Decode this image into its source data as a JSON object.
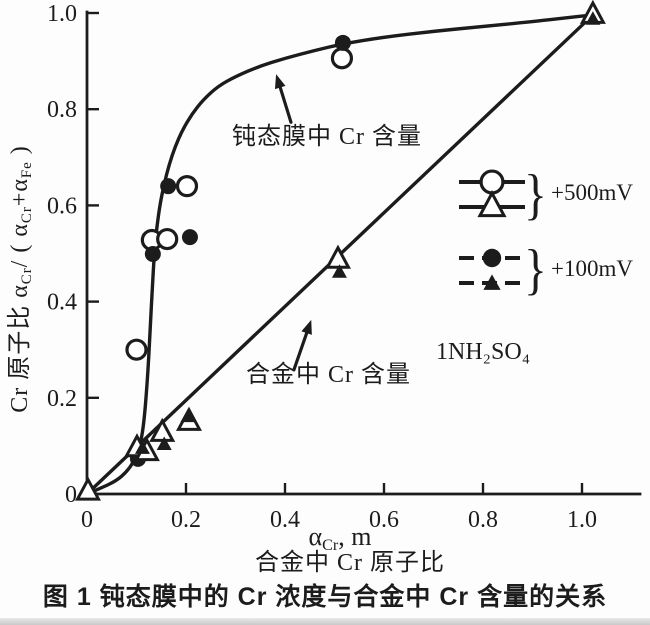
{
  "figure": {
    "caption": "图 1  钝态膜中的 Cr 浓度与合金中 Cr 含量的关系",
    "electrolyte": "1NH₂SO₄",
    "brace": "}"
  },
  "chart_data": {
    "type": "scatter",
    "title": "",
    "ink_color": "#1c1c1c",
    "xlim": [
      0,
      1.12
    ],
    "ylim": [
      0,
      1.0
    ],
    "grid": false,
    "xlabel_rich": [
      {
        "t": "α"
      },
      {
        "t": "Cr",
        "sub": true
      },
      {
        "t": ", m"
      }
    ],
    "xlabel_cjk": "合金中 Cr 原子比",
    "ylabel_rich": [
      {
        "t": "Cr 原子比 α"
      },
      {
        "t": "Cr",
        "sub": true
      },
      {
        "t": "/ ( α"
      },
      {
        "t": "Cr",
        "sub": true
      },
      {
        "t": "+α"
      },
      {
        "t": "Fe",
        "sub": true
      },
      {
        "t": " )"
      }
    ],
    "x_ticks": {
      "values": [
        0,
        0.2,
        0.4,
        0.6,
        0.8,
        1.0
      ],
      "labels": [
        "0",
        "0.2",
        "0.4",
        "0.6",
        "0.8",
        "1.0"
      ]
    },
    "y_ticks": {
      "values": [
        0,
        0.2,
        0.4,
        0.6,
        0.8,
        1.0
      ],
      "labels": [
        "0",
        "0.2",
        "0.4",
        "0.6",
        "0.8",
        "1.0"
      ]
    },
    "legend": {
      "position": "right-middle",
      "groups": [
        {
          "label": "+500mV",
          "line": "solid",
          "markers": [
            "circle-open",
            "triangle-open"
          ]
        },
        {
          "label": "+100mV",
          "line": "dashed",
          "markers": [
            "circle-filled",
            "triangle-filled"
          ]
        }
      ]
    },
    "annotations": [
      {
        "id": "film",
        "text": "钝态膜中 Cr 含量",
        "arrow_from": [
          0.412,
          0.773
        ],
        "arrow_to": [
          0.382,
          0.873
        ]
      },
      {
        "id": "alloy",
        "text": "合金中 Cr 含量",
        "arrow_from": [
          0.418,
          0.258
        ],
        "arrow_to": [
          0.453,
          0.362
        ]
      }
    ],
    "series": [
      {
        "name": "passive-film-Cr-500mV",
        "marker": "circle-open",
        "points": [
          [
            0.1,
            0.3
          ],
          [
            0.131,
            0.528
          ],
          [
            0.162,
            0.53
          ],
          [
            0.202,
            0.64
          ],
          [
            0.515,
            0.906
          ]
        ]
      },
      {
        "name": "passive-film-Cr-100mV",
        "marker": "circle-filled",
        "points": [
          [
            0.103,
            0.073
          ],
          [
            0.133,
            0.499
          ],
          [
            0.164,
            0.64
          ],
          [
            0.208,
            0.534
          ],
          [
            0.517,
            0.938
          ]
        ]
      },
      {
        "name": "alloy-Cr-500mV",
        "marker": "triangle-open",
        "points": [
          [
            0.002,
            0.005
          ],
          [
            0.101,
            0.095
          ],
          [
            0.121,
            0.087
          ],
          [
            0.152,
            0.127
          ],
          [
            0.206,
            0.15
          ],
          [
            0.507,
            0.487
          ],
          [
            1.022,
            0.996
          ]
        ]
      },
      {
        "name": "alloy-Cr-100mV",
        "marker": "triangle-filled",
        "points": [
          [
            0.112,
            0.096
          ],
          [
            0.156,
            0.104
          ],
          [
            0.204,
            0.162
          ],
          [
            0.51,
            0.462
          ],
          [
            1.022,
            0.988
          ]
        ]
      }
    ],
    "curves": [
      {
        "name": "passive-film-curve",
        "points": [
          [
            0,
            0
          ],
          [
            0.03,
            0.013
          ],
          [
            0.06,
            0.028
          ],
          [
            0.08,
            0.046
          ],
          [
            0.095,
            0.068
          ],
          [
            0.104,
            0.09
          ],
          [
            0.111,
            0.12
          ],
          [
            0.116,
            0.16
          ],
          [
            0.12,
            0.21
          ],
          [
            0.124,
            0.27
          ],
          [
            0.128,
            0.35
          ],
          [
            0.132,
            0.43
          ],
          [
            0.136,
            0.5
          ],
          [
            0.141,
            0.555
          ],
          [
            0.148,
            0.605
          ],
          [
            0.156,
            0.645
          ],
          [
            0.166,
            0.685
          ],
          [
            0.178,
            0.722
          ],
          [
            0.193,
            0.757
          ],
          [
            0.212,
            0.79
          ],
          [
            0.235,
            0.82
          ],
          [
            0.265,
            0.848
          ],
          [
            0.3,
            0.868
          ],
          [
            0.345,
            0.888
          ],
          [
            0.4,
            0.906
          ],
          [
            0.46,
            0.922
          ],
          [
            0.517,
            0.936
          ],
          [
            0.6,
            0.95
          ],
          [
            0.7,
            0.962
          ],
          [
            0.8,
            0.972
          ],
          [
            0.9,
            0.982
          ],
          [
            0.96,
            0.989
          ],
          [
            1.022,
            0.996
          ]
        ]
      },
      {
        "name": "alloy-diagonal-line",
        "points": [
          [
            0.002,
            0.002
          ],
          [
            1.022,
            0.996
          ]
        ]
      }
    ]
  }
}
